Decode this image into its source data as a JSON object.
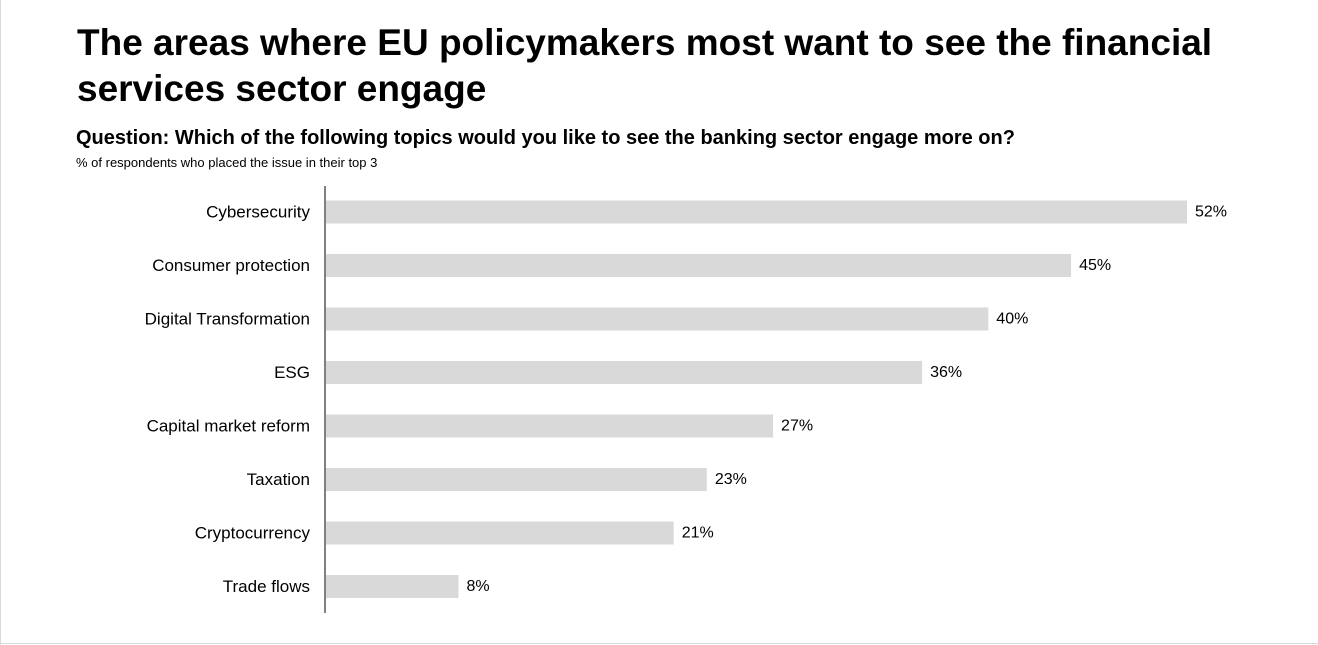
{
  "title": "The areas where EU policymakers most want to see the financial services sector engage",
  "question": "Question: Which of the following topics would you like to see the banking sector engage more on?",
  "note": "% of respondents who placed the issue in their top 3",
  "chart_data": {
    "type": "bar",
    "orientation": "horizontal",
    "categories": [
      "Cybersecurity",
      "Consumer protection",
      "Digital Transformation",
      "ESG",
      "Capital market reform",
      "Taxation",
      "Cryptocurrency",
      "Trade flows"
    ],
    "values": [
      52,
      45,
      40,
      36,
      27,
      23,
      21,
      8
    ],
    "value_labels": [
      "52%",
      "45%",
      "40%",
      "36%",
      "27%",
      "23%",
      "21%",
      "8%"
    ],
    "unit": "%",
    "xlim": [
      0,
      52
    ],
    "grid": false,
    "legend": "none",
    "bar_color": "#d9d9d9",
    "axis_color": "#000000"
  }
}
